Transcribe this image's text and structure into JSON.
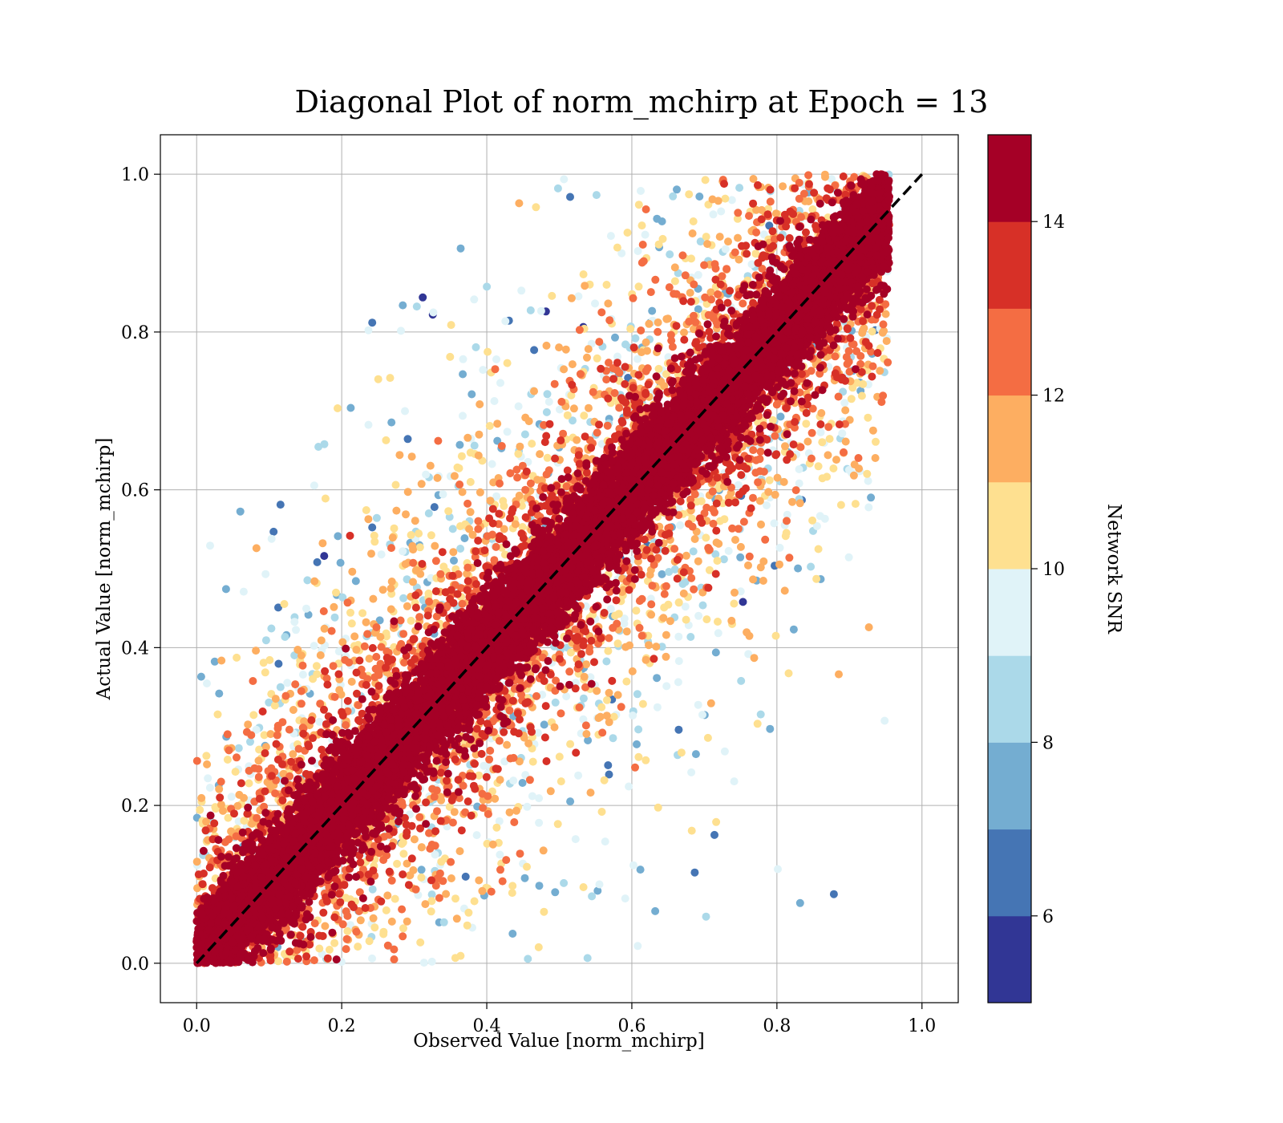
{
  "chart_data": {
    "type": "scatter",
    "title": "Diagonal Plot of norm_mchirp at Epoch = 13",
    "xlabel": "Observed Value [norm_mchirp]",
    "ylabel": "Actual Value [norm_mchirp]",
    "xlim": [
      -0.05,
      1.05
    ],
    "ylim": [
      -0.05,
      1.05
    ],
    "xticks": [
      "0.0",
      "0.2",
      "0.4",
      "0.6",
      "0.8",
      "1.0"
    ],
    "yticks": [
      "0.0",
      "0.2",
      "0.4",
      "0.6",
      "0.8",
      "1.0"
    ],
    "grid": true,
    "reference_line": {
      "from": [
        0,
        0
      ],
      "to": [
        1,
        1
      ],
      "style": "dashed",
      "color": "#000000"
    },
    "colorbar": {
      "label": "Network SNR",
      "range": [
        5,
        15
      ],
      "ticks": [
        "6",
        "8",
        "10",
        "12",
        "14"
      ],
      "colors": [
        "#313695",
        "#4575b4",
        "#74add1",
        "#abd9e9",
        "#e0f3f8",
        "#fee090",
        "#fdae61",
        "#f46d43",
        "#d73027",
        "#a50026"
      ]
    },
    "observed_range": [
      0.0,
      0.95
    ],
    "actual_range": [
      0.0,
      1.0
    ],
    "approx_point_count": 20000,
    "color_by": "Network SNR"
  }
}
